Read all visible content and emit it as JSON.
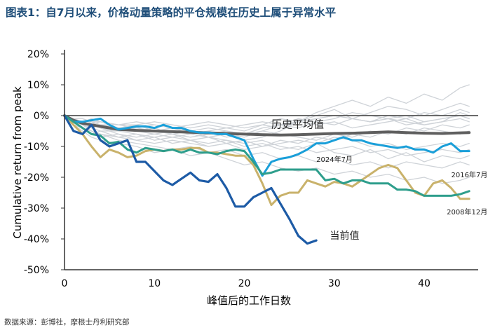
{
  "title": "图表1：自7月以来，价格动量策略的平仓规模在历史上属于异常水平",
  "source": "数据来源：彭博社，摩根士丹利研究部",
  "chart_data": {
    "type": "line",
    "xlabel": "峰值后的工作日数",
    "ylabel": "Cumulative return from peak",
    "xlim": [
      0,
      46
    ],
    "ylim": [
      -50,
      20
    ],
    "xticks": [
      0,
      10,
      20,
      30,
      40
    ],
    "yticks": [
      20,
      10,
      0,
      -10,
      -20,
      -30,
      -40,
      -50
    ],
    "grid": false,
    "annotations": [
      {
        "text": "历史平均值",
        "x": 23,
        "y": -4
      },
      {
        "text": "2024年7月",
        "x": 28,
        "y": -15
      },
      {
        "text": "2016年7月",
        "x": 43,
        "y": -20
      },
      {
        "text": "2008年12月",
        "x": 42.5,
        "y": -32
      },
      {
        "text": "当前值",
        "x": 29.5,
        "y": -40
      }
    ],
    "colors": {
      "historical": "#cfd3d8",
      "average": "#5f5f5f",
      "jul2024": "#1a9fd9",
      "jul2016": "#c9b26b",
      "dec2008": "#2e9e8c",
      "current": "#1d5ba6"
    },
    "series": [
      {
        "key": "historical",
        "x": [
          0,
          1,
          2,
          3,
          4,
          5,
          6,
          8,
          10,
          12,
          14,
          16,
          18,
          20,
          22,
          24,
          26,
          28,
          30,
          32,
          34,
          36,
          38,
          40,
          42,
          44,
          45
        ],
        "values": [
          0,
          -1,
          -2,
          -3,
          -4,
          -5,
          -4,
          -5,
          -6,
          -5,
          -6,
          -5,
          -7,
          -6,
          -5,
          -3,
          -2,
          -1,
          0,
          -1,
          -2,
          -1,
          -3,
          -2,
          -1,
          0,
          -1
        ]
      },
      {
        "key": "historical",
        "x": [
          0,
          1,
          2,
          3,
          4,
          6,
          8,
          10,
          12,
          14,
          16,
          18,
          20,
          22,
          24,
          26,
          28,
          30,
          32,
          34,
          36,
          38,
          40,
          42,
          44,
          45
        ],
        "values": [
          0,
          -2,
          -4,
          -6,
          -5,
          -7,
          -8,
          -7,
          -9,
          -8,
          -10,
          -9,
          -8,
          -7,
          -5,
          -2,
          1,
          3,
          5,
          3,
          6,
          4,
          7,
          5,
          9,
          10
        ]
      },
      {
        "key": "historical",
        "x": [
          0,
          1,
          2,
          3,
          4,
          6,
          8,
          10,
          12,
          14,
          16,
          18,
          20,
          22,
          24,
          26,
          28,
          30,
          32,
          34,
          36,
          38,
          40,
          42,
          44,
          45
        ],
        "values": [
          0,
          -1,
          -1,
          -2,
          -3,
          -3,
          -4,
          -3,
          -4,
          -5,
          -4,
          -5,
          -6,
          -4,
          -3,
          -4,
          -2,
          -3,
          -1,
          -2,
          0,
          -1,
          1,
          0,
          2,
          1
        ]
      },
      {
        "key": "historical",
        "x": [
          0,
          1,
          2,
          3,
          4,
          6,
          8,
          10,
          12,
          14,
          16,
          18,
          20,
          22,
          24,
          26,
          28,
          30,
          32,
          34,
          36,
          38,
          40,
          42,
          44,
          45
        ],
        "values": [
          0,
          -3,
          -4,
          -5,
          -6,
          -7,
          -6,
          -8,
          -7,
          -6,
          -7,
          -8,
          -9,
          -8,
          -10,
          -11,
          -9,
          -12,
          -13,
          -11,
          -14,
          -12,
          -15,
          -13,
          -14,
          -13
        ]
      },
      {
        "key": "historical",
        "x": [
          0,
          1,
          2,
          3,
          4,
          6,
          8,
          10,
          12,
          14,
          16,
          18,
          20,
          22,
          24,
          26,
          28,
          30,
          32,
          34,
          36,
          38,
          40,
          42,
          44,
          45
        ],
        "values": [
          0,
          -1,
          -2,
          -1,
          -2,
          -3,
          -2,
          -3,
          -4,
          -3,
          -2,
          -3,
          -4,
          -3,
          -1,
          -2,
          -1,
          0,
          -1,
          -2,
          -1,
          -2,
          -3,
          -2,
          -1,
          -2
        ]
      },
      {
        "key": "historical",
        "x": [
          0,
          1,
          2,
          3,
          4,
          6,
          8,
          10,
          12,
          14,
          16,
          18,
          20,
          22,
          24,
          26,
          28,
          30,
          32,
          34,
          36,
          38,
          40,
          42,
          44,
          45
        ],
        "values": [
          0,
          -2,
          -3,
          -5,
          -6,
          -8,
          -9,
          -10,
          -11,
          -10,
          -12,
          -11,
          -13,
          -12,
          -14,
          -13,
          -15,
          -14,
          -16,
          -15,
          -17,
          -15,
          -16,
          -17,
          -15,
          -16
        ]
      },
      {
        "key": "historical",
        "x": [
          0,
          1,
          2,
          3,
          4,
          6,
          8,
          10,
          12,
          14,
          16,
          18,
          20,
          22,
          24,
          26,
          28,
          30,
          32,
          34,
          36,
          38,
          40,
          42,
          44,
          45
        ],
        "values": [
          0,
          -1,
          -3,
          -2,
          -4,
          -5,
          -4,
          -5,
          -6,
          -7,
          -6,
          -5,
          -6,
          -4,
          -3,
          -2,
          0,
          2,
          -1,
          1,
          3,
          2,
          0,
          2,
          4,
          3
        ]
      },
      {
        "key": "historical",
        "x": [
          0,
          1,
          2,
          3,
          4,
          6,
          8,
          10,
          12,
          14,
          16,
          18,
          20,
          22,
          24,
          26,
          28,
          30,
          32,
          34,
          36,
          38,
          40,
          42,
          44,
          45
        ],
        "values": [
          0,
          -2,
          -2,
          -3,
          -4,
          -6,
          -7,
          -6,
          -7,
          -8,
          -7,
          -9,
          -8,
          -10,
          -9,
          -8,
          -9,
          -7,
          -8,
          -10,
          -9,
          -11,
          -10,
          -9,
          -10,
          -9
        ]
      },
      {
        "key": "historical",
        "x": [
          0,
          1,
          2,
          3,
          4,
          6,
          8,
          10,
          12,
          14,
          16,
          18,
          20,
          22,
          24,
          26,
          28,
          30,
          32,
          34,
          36,
          38,
          40,
          42,
          44,
          45
        ],
        "values": [
          0,
          -1,
          -2,
          -4,
          -3,
          -4,
          -5,
          -4,
          -6,
          -5,
          -7,
          -6,
          -7,
          -5,
          -6,
          -7,
          -8,
          -6,
          -7,
          -5,
          -6,
          -4,
          -5,
          -3,
          -4,
          -3
        ]
      },
      {
        "key": "historical",
        "x": [
          0,
          1,
          2,
          3,
          4,
          6,
          8,
          10,
          12,
          14,
          16,
          18,
          20,
          22,
          24,
          26,
          28,
          30,
          32,
          34,
          36,
          38,
          40,
          42,
          44,
          45
        ],
        "values": [
          0,
          -3,
          -5,
          -7,
          -8,
          -9,
          -10,
          -12,
          -11,
          -13,
          -12,
          -14,
          -16,
          -15,
          -17,
          -18,
          -17,
          -19,
          -18,
          -20,
          -19,
          -21,
          -20,
          -22,
          -21,
          -20
        ]
      },
      {
        "key": "historical",
        "x": [
          0,
          1,
          2,
          3,
          4,
          6,
          8,
          10,
          12,
          14,
          16,
          18,
          20,
          22,
          24,
          26,
          28,
          30,
          32,
          34,
          36,
          38,
          40,
          42,
          44,
          45
        ],
        "values": [
          0,
          -1,
          -1,
          -2,
          -2,
          -3,
          -3,
          -2,
          -3,
          -4,
          -3,
          -4,
          -3,
          -2,
          -3,
          -1,
          -2,
          -1,
          1,
          0,
          -1,
          0,
          -2,
          -1,
          0,
          -1
        ]
      },
      {
        "key": "historical",
        "x": [
          0,
          1,
          2,
          3,
          4,
          6,
          8,
          10,
          12,
          14,
          16,
          18,
          20,
          22,
          24,
          26,
          28,
          30,
          32,
          34,
          36,
          38,
          40,
          42,
          44,
          45
        ],
        "values": [
          0,
          -2,
          -4,
          -5,
          -7,
          -6,
          -8,
          -9,
          -8,
          -9,
          -10,
          -9,
          -11,
          -10,
          -8,
          -9,
          -7,
          -8,
          -6,
          -7,
          -5,
          -6,
          -4,
          -5,
          -6,
          -5
        ]
      },
      {
        "key": "historical",
        "x": [
          0,
          1,
          2,
          3,
          4,
          6,
          8,
          10,
          12,
          14,
          16,
          18,
          20,
          22,
          24,
          26,
          28,
          30,
          32,
          34,
          36,
          38,
          40,
          42,
          44,
          45
        ],
        "values": [
          0,
          -1,
          -2,
          -3,
          -2,
          -4,
          -3,
          -5,
          -4,
          -6,
          -5,
          -4,
          -5,
          -3,
          -4,
          -2,
          -3,
          -2,
          -4,
          -3,
          -2,
          -1,
          -3,
          -2,
          1,
          0
        ]
      },
      {
        "key": "historical",
        "x": [
          0,
          1,
          2,
          3,
          4,
          6,
          8,
          10,
          12,
          14,
          16,
          18,
          20,
          22,
          24,
          26,
          28,
          30,
          32,
          34,
          36,
          38,
          40,
          42,
          44,
          45
        ],
        "values": [
          0,
          -2,
          -3,
          -4,
          -5,
          -5,
          -6,
          -7,
          -6,
          -8,
          -9,
          -8,
          -10,
          -9,
          -11,
          -10,
          -12,
          -11,
          -10,
          -12,
          -11,
          -13,
          -12,
          -11,
          -12,
          -11
        ]
      },
      {
        "key": "average",
        "name": "历史平均值",
        "x": [
          0,
          1,
          2,
          3,
          4,
          5,
          6,
          8,
          10,
          12,
          14,
          16,
          18,
          20,
          22,
          24,
          26,
          28,
          30,
          32,
          34,
          36,
          38,
          40,
          42,
          44,
          45
        ],
        "values": [
          0,
          -1.5,
          -2.5,
          -3,
          -3.5,
          -4,
          -4.5,
          -4.8,
          -5,
          -5.2,
          -5.4,
          -5.6,
          -5.8,
          -6,
          -6.2,
          -6.3,
          -6.2,
          -6,
          -5.8,
          -5.7,
          -5.5,
          -5.3,
          -5.5,
          -5.7,
          -5.8,
          -5.6,
          -5.5
        ]
      },
      {
        "key": "jul2024",
        "name": "2024年7月",
        "x": [
          0,
          1,
          2,
          3,
          4,
          5,
          6,
          7,
          8,
          9,
          10,
          11,
          12,
          13,
          14,
          15,
          16,
          17,
          18,
          19,
          20,
          21,
          22,
          23,
          24,
          25,
          26,
          27,
          28,
          29,
          30,
          31,
          32,
          33,
          34,
          35,
          36,
          37,
          38,
          39,
          40,
          41,
          42,
          43,
          44,
          45
        ],
        "values": [
          0,
          -2,
          -2,
          -1.5,
          -1,
          -3,
          -4.5,
          -4,
          -3.5,
          -3.5,
          -4,
          -3,
          -4,
          -4,
          -5,
          -5.5,
          -5.5,
          -6,
          -6,
          -7,
          -8,
          -14,
          -19.5,
          -15,
          -14,
          -13.5,
          -12.5,
          -11,
          -9,
          -9,
          -8,
          -7,
          -8,
          -8,
          -9,
          -9.5,
          -10,
          -10.5,
          -10,
          -11,
          -11,
          -12,
          -10,
          -9,
          -11.5,
          -11.5
        ]
      },
      {
        "key": "jul2016",
        "name": "2016年7月",
        "x": [
          0,
          1,
          2,
          3,
          4,
          5,
          6,
          7,
          8,
          9,
          10,
          11,
          12,
          13,
          14,
          15,
          16,
          17,
          18,
          19,
          20,
          21,
          22,
          23,
          24,
          25,
          26,
          27,
          28,
          29,
          30,
          31,
          32,
          33,
          34,
          35,
          36,
          37,
          38,
          39,
          40,
          41,
          42,
          43,
          44,
          45
        ],
        "values": [
          0,
          -3,
          -6,
          -10,
          -13.5,
          -11,
          -12,
          -13.5,
          -13,
          -11.5,
          -11,
          -11.5,
          -11,
          -11,
          -10.5,
          -10.5,
          -12,
          -12,
          -12.5,
          -13,
          -13,
          -16,
          -22,
          -29,
          -26,
          -25,
          -25,
          -21,
          -22,
          -23,
          -21.5,
          -22,
          -23,
          -21,
          -19,
          -17,
          -16,
          -17,
          -21,
          -25,
          -26,
          -22,
          -21,
          -23.5,
          -27,
          -27
        ]
      },
      {
        "key": "dec2008",
        "name": "2008年12月",
        "x": [
          0,
          1,
          2,
          3,
          4,
          5,
          6,
          7,
          8,
          9,
          10,
          11,
          12,
          13,
          14,
          15,
          16,
          17,
          18,
          19,
          20,
          21,
          22,
          23,
          24,
          25,
          26,
          27,
          28,
          29,
          30,
          31,
          32,
          33,
          34,
          35,
          36,
          37,
          38,
          39,
          40,
          41,
          42,
          43,
          44,
          45
        ],
        "values": [
          0,
          -2,
          -4,
          -6,
          -6.5,
          -9,
          -8.5,
          -11,
          -12,
          -10.5,
          -11,
          -11.5,
          -11,
          -12,
          -11,
          -12,
          -12,
          -12.5,
          -11.5,
          -11,
          -11.5,
          -15,
          -19,
          -18.5,
          -17.5,
          -17.5,
          -17.5,
          -17.5,
          -17.5,
          -21,
          -20.5,
          -22,
          -21,
          -21,
          -22,
          -22,
          -22,
          -24,
          -24,
          -24.5,
          -26,
          -26,
          -26,
          -26,
          -25.5,
          -24.5
        ]
      },
      {
        "key": "current",
        "name": "当前值",
        "x": [
          0,
          1,
          2,
          3,
          4,
          5,
          6,
          7,
          8,
          9,
          10,
          11,
          12,
          13,
          14,
          15,
          16,
          17,
          18,
          19,
          20,
          21,
          22,
          23,
          24,
          25,
          26,
          27,
          28
        ],
        "values": [
          0,
          -5,
          -6,
          -3,
          -8,
          -10,
          -9,
          -8,
          -15,
          -15,
          -18,
          -21,
          -22.5,
          -20.5,
          -18.5,
          -21,
          -21.5,
          -19,
          -23.5,
          -29.5,
          -29.5,
          -26.5,
          -25,
          -23.5,
          -28.5,
          -33.5,
          -39,
          -41.5,
          -40.5
        ]
      }
    ]
  }
}
